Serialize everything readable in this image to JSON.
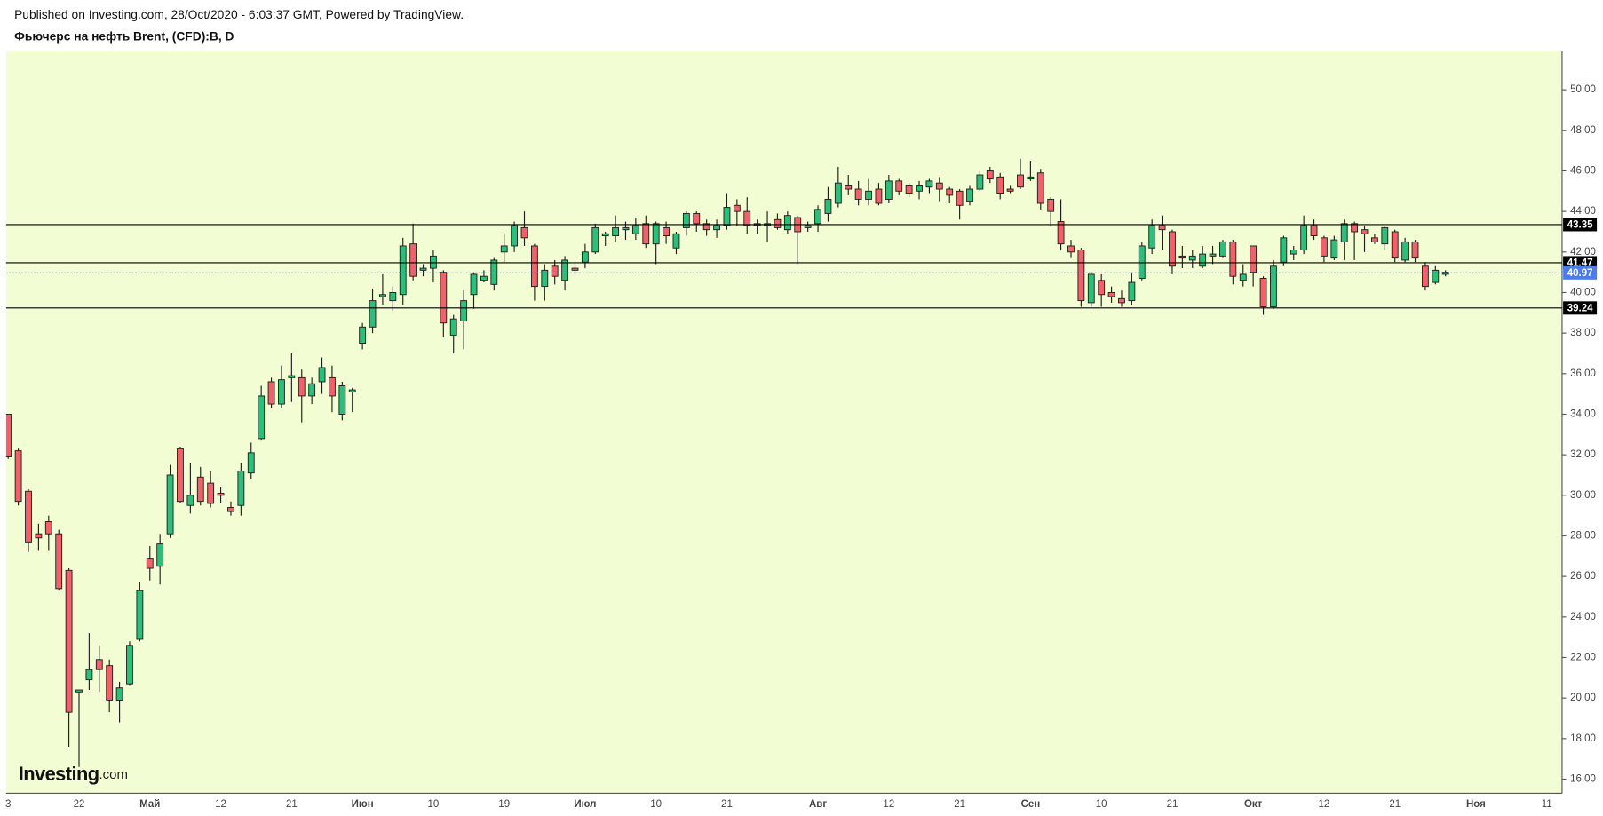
{
  "header": {
    "published": "Published on Investing.com, 28/Oct/2020 - 6:03:37 GMT, Powered by TradingView."
  },
  "watermark": {
    "brand": "Investing",
    "suffix": ".com"
  },
  "chart_data": {
    "type": "candlestick",
    "title": "Фьючерс на нефть Brent, (CFD):B, D",
    "up_color": "#2bbf7a",
    "down_color": "#f0616a",
    "outline_color": "#1e1e1e",
    "categories": [
      "3",
      null,
      null,
      null,
      null,
      null,
      null,
      "22",
      null,
      null,
      null,
      null,
      null,
      null,
      "Май",
      null,
      null,
      null,
      null,
      null,
      null,
      "12",
      null,
      null,
      null,
      null,
      null,
      null,
      "21",
      null,
      null,
      null,
      null,
      null,
      null,
      "Июн",
      null,
      null,
      null,
      null,
      null,
      null,
      "10",
      null,
      null,
      null,
      null,
      null,
      null,
      "19",
      null,
      null,
      null,
      null,
      null,
      null,
      null,
      "Июл",
      null,
      null,
      null,
      null,
      null,
      null,
      "10",
      null,
      null,
      null,
      null,
      null,
      null,
      "21",
      null,
      null,
      null,
      null,
      null,
      null,
      null,
      null,
      "Авг",
      null,
      null,
      null,
      null,
      null,
      null,
      "12",
      null,
      null,
      null,
      null,
      null,
      null,
      "21",
      null,
      null,
      null,
      null,
      null,
      null,
      "Сен",
      null,
      null,
      null,
      null,
      null,
      null,
      "10",
      null,
      null,
      null,
      null,
      null,
      null,
      "21",
      null,
      null,
      null,
      null,
      null,
      null,
      null,
      "Окт",
      null,
      null,
      null,
      null,
      null,
      null,
      "12",
      null,
      null,
      null,
      null,
      null,
      null,
      "21",
      null,
      null,
      null,
      null,
      null,
      null,
      null,
      "Ноя",
      null,
      null,
      null,
      null,
      null,
      null,
      "11"
    ],
    "open": [
      34.0,
      32.2,
      30.2,
      28.1,
      28.7,
      28.1,
      26.3,
      20.3,
      20.9,
      21.9,
      21.6,
      19.9,
      20.7,
      22.9,
      26.9,
      26.5,
      28.1,
      32.3,
      29.5,
      30.9,
      30.6,
      30.1,
      29.4,
      29.5,
      31.1,
      32.8,
      35.6,
      34.5,
      35.8,
      35.8,
      34.9,
      35.6,
      35.8,
      34.0,
      35.1,
      37.5,
      38.3,
      39.8,
      39.6,
      39.9,
      42.4,
      41.1,
      41.2,
      41.0,
      37.9,
      38.6,
      39.9,
      40.6,
      40.4,
      42.0,
      42.3,
      43.2,
      42.3,
      40.3,
      41.3,
      40.6,
      41.2,
      41.5,
      42.0,
      42.8,
      42.8,
      43.1,
      42.9,
      43.4,
      42.4,
      43.2,
      42.2,
      43.2,
      43.9,
      43.4,
      43.1,
      43.3,
      44.3,
      44.0,
      43.4,
      43.3,
      43.6,
      43.1,
      43.7,
      43.2,
      43.4,
      43.9,
      44.4,
      45.3,
      45.1,
      44.6,
      45.1,
      44.6,
      45.5,
      45.3,
      45.0,
      45.2,
      45.4,
      45.1,
      45.0,
      44.5,
      45.1,
      46.0,
      45.7,
      45.1,
      45.8,
      45.6,
      45.9,
      44.6,
      43.5,
      42.3,
      42.1,
      39.5,
      40.6,
      40.0,
      39.7,
      39.6,
      40.7,
      42.2,
      43.3,
      43.0,
      41.8,
      41.6,
      41.3,
      41.8,
      41.8,
      42.5,
      40.6,
      42.3,
      40.7,
      39.3,
      41.5,
      41.9,
      42.1,
      43.3,
      42.7,
      41.7,
      42.5,
      43.4,
      43.1,
      42.7,
      42.4,
      43.0,
      41.6,
      42.5,
      41.3,
      40.5,
      40.9,
      null,
      null,
      null,
      null,
      null,
      null,
      null,
      null,
      null,
      null
    ],
    "high": [
      34.0,
      32.3,
      30.3,
      28.6,
      29.0,
      28.3,
      26.4,
      20.4,
      23.2,
      22.6,
      21.9,
      20.8,
      22.8,
      25.7,
      27.5,
      28.1,
      31.5,
      32.4,
      31.6,
      31.4,
      31.2,
      30.4,
      29.7,
      31.6,
      32.6,
      35.4,
      35.8,
      36.4,
      37.0,
      36.2,
      35.8,
      36.8,
      36.4,
      35.6,
      35.3,
      38.5,
      40.2,
      40.9,
      40.3,
      42.7,
      43.4,
      41.4,
      42.1,
      41.1,
      38.9,
      40.1,
      41.0,
      41.1,
      41.7,
      42.9,
      43.5,
      44.0,
      42.4,
      41.4,
      41.6,
      41.8,
      41.4,
      42.4,
      43.4,
      43.0,
      43.8,
      43.5,
      43.7,
      43.8,
      43.5,
      43.5,
      43.0,
      44.0,
      44.0,
      43.6,
      43.6,
      44.9,
      44.6,
      44.7,
      43.6,
      44.0,
      43.9,
      44.0,
      43.8,
      43.5,
      44.3,
      45.2,
      46.2,
      45.8,
      45.5,
      45.6,
      45.4,
      45.8,
      45.6,
      45.4,
      45.5,
      45.6,
      45.7,
      45.2,
      45.1,
      45.3,
      46.0,
      46.2,
      45.9,
      45.3,
      46.6,
      46.5,
      46.1,
      44.7,
      44.6,
      42.6,
      42.2,
      41.0,
      40.9,
      40.3,
      40.1,
      41.0,
      42.5,
      43.6,
      43.8,
      43.1,
      42.3,
      42.1,
      42.3,
      42.3,
      42.6,
      42.6,
      41.4,
      42.3,
      40.8,
      41.6,
      42.8,
      42.3,
      43.8,
      43.6,
      42.8,
      42.8,
      43.6,
      43.5,
      43.3,
      42.9,
      43.3,
      43.1,
      42.7,
      42.6,
      41.5,
      41.3,
      41.1,
      null,
      null,
      null,
      null,
      null,
      null,
      null,
      null,
      null,
      null
    ],
    "low": [
      31.8,
      29.5,
      27.2,
      27.3,
      27.3,
      25.3,
      17.6,
      16.6,
      20.4,
      20.3,
      19.3,
      18.8,
      20.6,
      22.8,
      25.8,
      25.6,
      27.9,
      29.6,
      29.1,
      29.5,
      29.4,
      29.6,
      29.0,
      29.0,
      30.8,
      32.7,
      34.3,
      34.3,
      34.6,
      33.6,
      34.5,
      35.0,
      34.1,
      33.7,
      34.1,
      37.2,
      38.0,
      39.4,
      39.1,
      39.4,
      40.6,
      40.8,
      40.5,
      37.8,
      37.0,
      37.2,
      39.2,
      40.5,
      40.1,
      41.5,
      42.0,
      42.3,
      39.6,
      39.6,
      40.4,
      40.1,
      40.9,
      41.2,
      41.9,
      42.3,
      42.5,
      42.6,
      42.6,
      42.2,
      41.4,
      42.4,
      41.9,
      42.8,
      43.0,
      42.8,
      42.7,
      43.1,
      43.3,
      42.9,
      42.9,
      42.5,
      43.1,
      42.9,
      41.4,
      43.0,
      43.0,
      43.5,
      44.2,
      44.8,
      44.3,
      44.3,
      44.3,
      44.4,
      44.8,
      44.7,
      44.6,
      44.9,
      44.5,
      44.4,
      43.6,
      44.3,
      45.0,
      45.4,
      44.6,
      44.9,
      45.1,
      45.5,
      44.1,
      43.3,
      42.1,
      41.7,
      39.3,
      39.3,
      39.3,
      39.5,
      39.3,
      39.4,
      40.6,
      41.9,
      42.1,
      40.9,
      41.2,
      41.2,
      41.2,
      41.4,
      41.7,
      40.4,
      40.3,
      40.3,
      38.9,
      39.2,
      41.3,
      41.6,
      41.9,
      42.6,
      41.5,
      41.6,
      41.6,
      41.6,
      42.0,
      42.4,
      42.1,
      41.5,
      41.5,
      41.5,
      40.1,
      40.4,
      40.8,
      null,
      null,
      null,
      null,
      null,
      null,
      null,
      null,
      null,
      null
    ],
    "close": [
      31.9,
      29.7,
      27.7,
      27.9,
      28.1,
      25.4,
      19.3,
      20.4,
      21.4,
      21.4,
      19.9,
      20.5,
      22.6,
      25.3,
      26.4,
      27.6,
      31.0,
      29.7,
      30.0,
      29.7,
      29.6,
      30.0,
      29.2,
      31.2,
      32.1,
      34.9,
      34.5,
      35.7,
      35.9,
      34.9,
      35.5,
      36.3,
      34.9,
      35.4,
      35.2,
      38.3,
      39.6,
      39.9,
      40.0,
      42.3,
      40.8,
      41.2,
      41.8,
      38.5,
      38.7,
      39.6,
      40.9,
      40.8,
      41.6,
      42.3,
      43.3,
      42.7,
      40.3,
      41.1,
      40.8,
      41.6,
      41.1,
      42.0,
      43.2,
      42.9,
      43.2,
      43.2,
      43.3,
      42.4,
      43.4,
      42.8,
      42.9,
      43.9,
      43.4,
      43.1,
      43.3,
      44.2,
      44.0,
      43.3,
      43.3,
      43.4,
      43.2,
      43.8,
      43.0,
      43.3,
      44.1,
      44.6,
      45.4,
      45.1,
      44.6,
      45.0,
      44.4,
      45.5,
      45.0,
      44.9,
      45.3,
      45.5,
      45.1,
      44.8,
      44.3,
      45.1,
      45.8,
      45.6,
      44.9,
      45.0,
      45.2,
      45.7,
      44.4,
      44.0,
      42.4,
      42.0,
      39.6,
      40.9,
      39.9,
      39.8,
      39.5,
      40.5,
      42.3,
      43.3,
      43.1,
      41.3,
      41.7,
      41.8,
      41.9,
      41.9,
      42.5,
      40.8,
      40.9,
      41.0,
      39.3,
      41.3,
      42.7,
      42.1,
      43.3,
      42.8,
      41.8,
      42.6,
      43.4,
      43.0,
      42.9,
      42.5,
      43.2,
      41.7,
      42.5,
      41.7,
      40.3,
      41.1,
      41.0,
      null,
      null,
      null,
      null,
      null,
      null,
      null,
      null,
      null,
      null
    ],
    "ylim": [
      15.3,
      51.9
    ],
    "yticks": [
      {
        "value": 16,
        "label": "16.00"
      },
      {
        "value": 18,
        "label": "18.00"
      },
      {
        "value": 20,
        "label": "20.00"
      },
      {
        "value": 22,
        "label": "22.00"
      },
      {
        "value": 24,
        "label": "24.00"
      },
      {
        "value": 26,
        "label": "26.00"
      },
      {
        "value": 28,
        "label": "28.00"
      },
      {
        "value": 30,
        "label": "30.00"
      },
      {
        "value": 32,
        "label": "32.00"
      },
      {
        "value": 34,
        "label": "34.00"
      },
      {
        "value": 36,
        "label": "36.00"
      },
      {
        "value": 38,
        "label": "38.00"
      },
      {
        "value": 40,
        "label": "40.00"
      },
      {
        "value": 42,
        "label": "42.00"
      },
      {
        "value": 44,
        "label": "44.00"
      },
      {
        "value": 46,
        "label": "46.00"
      },
      {
        "value": 48,
        "label": "48.00"
      },
      {
        "value": 50,
        "label": "50.00"
      }
    ],
    "hlines": [
      {
        "value": 43.35,
        "color": "#000000",
        "style": "solid"
      },
      {
        "value": 41.47,
        "color": "#000000",
        "style": "solid"
      },
      {
        "value": 39.24,
        "color": "#000000",
        "style": "solid"
      },
      {
        "value": 40.97,
        "color": "#4a7cf0",
        "style": "dotted"
      }
    ],
    "grid": false
  }
}
